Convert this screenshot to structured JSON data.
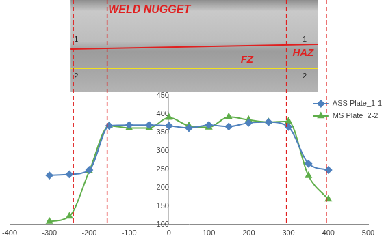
{
  "chart_data": {
    "type": "line",
    "annotations": [
      "WELD NUGGET",
      "FZ",
      "HAZ",
      "1",
      "1",
      "2",
      "2"
    ],
    "vlines": [
      -240,
      -155,
      295,
      395
    ],
    "x": [
      -300,
      -250,
      -200,
      -150,
      -100,
      -50,
      0,
      50,
      100,
      150,
      200,
      250,
      300,
      350,
      400
    ],
    "series": [
      {
        "name": "ASS Plate_1-1",
        "color": "#4f81bd",
        "marker": "diamond",
        "line_style": "solid",
        "values": [
          233,
          236,
          248,
          368,
          370,
          370,
          368,
          362,
          370,
          366,
          376,
          378,
          365,
          265,
          248
        ]
      },
      {
        "name": "MS Plate_2-2",
        "color": "#5fae4a",
        "marker": "triangle",
        "line_style": "solid",
        "values": [
          108,
          122,
          245,
          368,
          362,
          362,
          390,
          368,
          364,
          392,
          384,
          378,
          380,
          232,
          168
        ]
      }
    ],
    "xlim": [
      -400,
      500
    ],
    "xticks": [
      -400,
      -300,
      -200,
      -100,
      0,
      100,
      200,
      300,
      400,
      500
    ],
    "ylim": [
      100,
      450
    ],
    "yticks": [
      100,
      150,
      200,
      250,
      300,
      350,
      400,
      450
    ],
    "grid": false,
    "legend": "top right"
  }
}
